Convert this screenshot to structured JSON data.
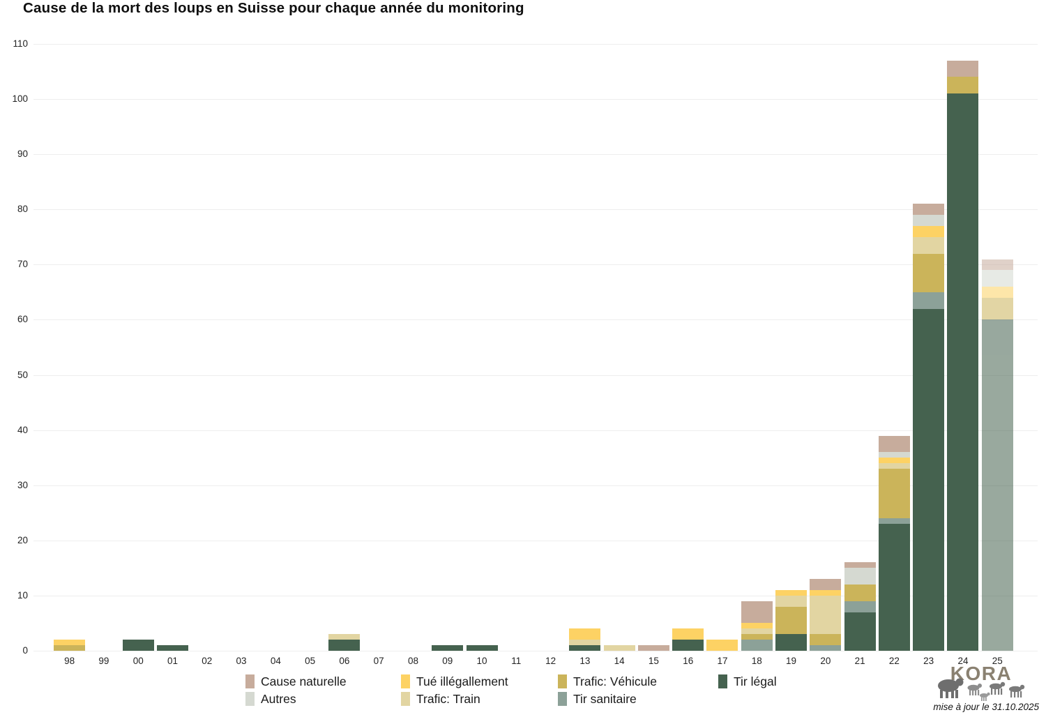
{
  "title": "Cause de la mort des loups en Suisse pour chaque année du monitoring",
  "footer": {
    "logo_text": "KORA",
    "updated": "mise à jour le 31.10.2025"
  },
  "chart_data": {
    "type": "bar",
    "stacked": true,
    "title": "Cause de la mort des loups en Suisse pour chaque année du monitoring",
    "xlabel": "",
    "ylabel": "",
    "ylim": [
      0,
      110
    ],
    "ytick_step": 10,
    "yticks": [
      0,
      10,
      20,
      30,
      40,
      50,
      60,
      70,
      80,
      90,
      100,
      110
    ],
    "grid": "horizontal",
    "legend_position": "bottom",
    "categories": [
      "98",
      "99",
      "00",
      "01",
      "02",
      "03",
      "04",
      "05",
      "06",
      "07",
      "08",
      "09",
      "10",
      "11",
      "12",
      "13",
      "14",
      "15",
      "16",
      "17",
      "18",
      "19",
      "20",
      "21",
      "22",
      "23",
      "24",
      "25"
    ],
    "stack_order_note": "first series is bottom of stack",
    "series": [
      {
        "name": "Tir légal",
        "color": "#45624F",
        "values": [
          0,
          0,
          2,
          1,
          0,
          0,
          0,
          0,
          2,
          0,
          0,
          1,
          1,
          0,
          0,
          1,
          0,
          0,
          2,
          0,
          0,
          3,
          0,
          7,
          23,
          62,
          101,
          60
        ]
      },
      {
        "name": "Tir sanitaire",
        "color": "#8CA198",
        "values": [
          0,
          0,
          0,
          0,
          0,
          0,
          0,
          0,
          0,
          0,
          0,
          0,
          0,
          0,
          0,
          0,
          0,
          0,
          0,
          0,
          2,
          0,
          1,
          2,
          1,
          3,
          0,
          0
        ]
      },
      {
        "name": "Trafic: Véhicule",
        "color": "#CBB45A",
        "values": [
          1,
          0,
          0,
          0,
          0,
          0,
          0,
          0,
          0,
          0,
          0,
          0,
          0,
          0,
          0,
          0,
          0,
          0,
          0,
          0,
          1,
          5,
          2,
          3,
          9,
          7,
          3,
          4
        ]
      },
      {
        "name": "Trafic: Train",
        "color": "#E2D5A2",
        "values": [
          0,
          0,
          0,
          0,
          0,
          0,
          0,
          0,
          1,
          0,
          0,
          0,
          0,
          0,
          0,
          1,
          1,
          0,
          0,
          0,
          1,
          2,
          7,
          0,
          1,
          3,
          0,
          0
        ]
      },
      {
        "name": "Tué illégallement",
        "color": "#FDD264",
        "values": [
          1,
          0,
          0,
          0,
          0,
          0,
          0,
          0,
          0,
          0,
          0,
          0,
          0,
          0,
          0,
          2,
          0,
          0,
          2,
          2,
          1,
          1,
          1,
          0,
          1,
          2,
          0,
          2
        ]
      },
      {
        "name": "Autres",
        "color": "#D5D9D1",
        "values": [
          0,
          0,
          0,
          0,
          0,
          0,
          0,
          0,
          0,
          0,
          0,
          0,
          0,
          0,
          0,
          0,
          0,
          0,
          0,
          0,
          0,
          0,
          0,
          3,
          1,
          2,
          0,
          3
        ]
      },
      {
        "name": "Cause naturelle",
        "color": "#C7AC9C",
        "values": [
          0,
          0,
          0,
          0,
          0,
          0,
          0,
          0,
          0,
          0,
          0,
          0,
          0,
          0,
          0,
          0,
          0,
          1,
          0,
          0,
          4,
          0,
          2,
          1,
          3,
          2,
          3,
          2
        ]
      }
    ],
    "totals": [
      2,
      0,
      2,
      1,
      0,
      0,
      0,
      0,
      3,
      0,
      0,
      1,
      1,
      0,
      0,
      4,
      1,
      1,
      4,
      2,
      9,
      11,
      13,
      16,
      39,
      81,
      107,
      71
    ],
    "provisional": {
      "category": "25",
      "opacity": 0.55
    },
    "legend_items": [
      {
        "label": "Cause naturelle",
        "color": "#C7AC9C"
      },
      {
        "label": "Tué illégallement",
        "color": "#FDD264"
      },
      {
        "label": "Trafic: Véhicule",
        "color": "#CBB45A"
      },
      {
        "label": "Tir légal",
        "color": "#45624F"
      },
      {
        "label": "Autres",
        "color": "#D5D9D1"
      },
      {
        "label": "Trafic: Train",
        "color": "#E2D5A2"
      },
      {
        "label": "Tir sanitaire",
        "color": "#8CA198"
      }
    ]
  }
}
